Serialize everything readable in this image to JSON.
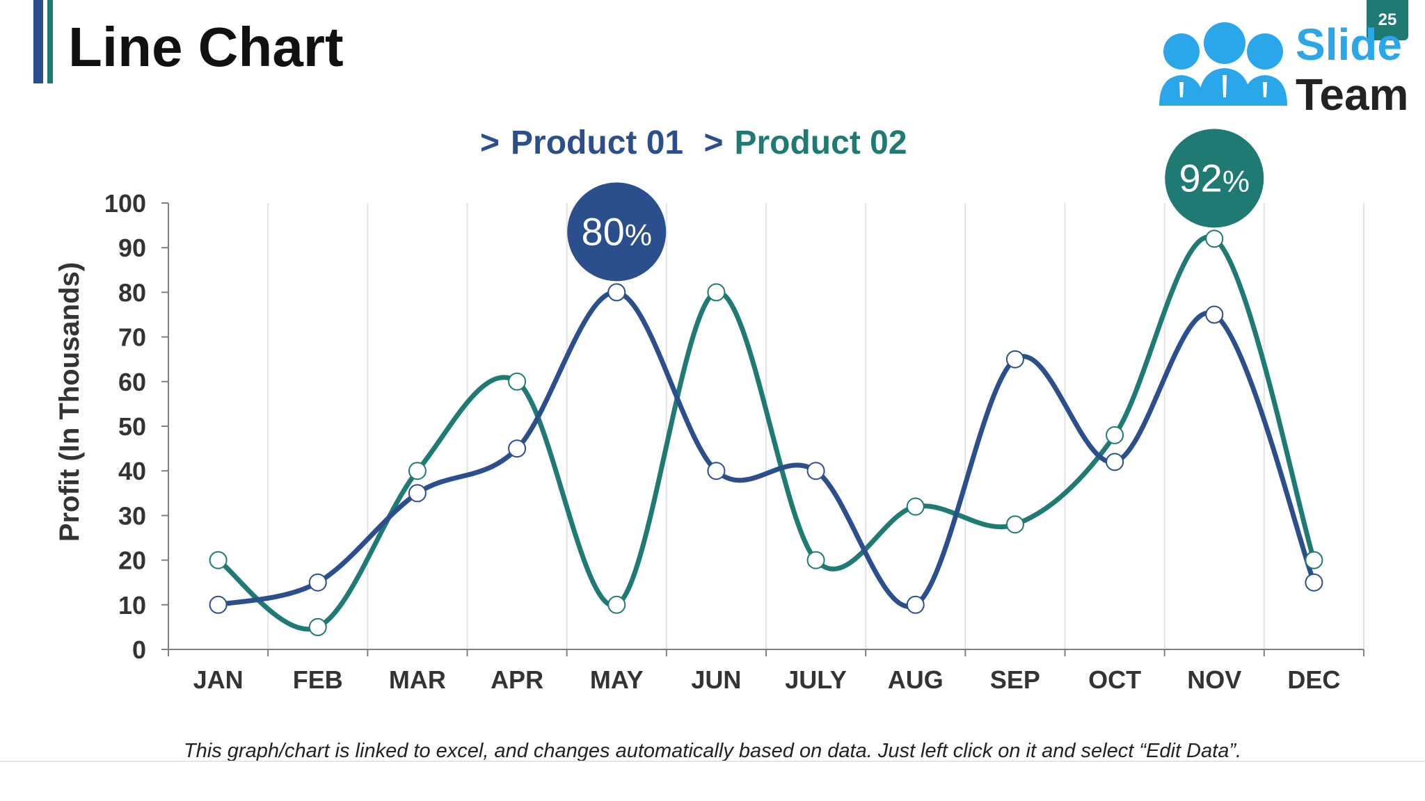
{
  "slide": {
    "title": "Line Chart",
    "page_number": "25",
    "footnote": "This graph/chart is linked to excel, and changes automatically based on data. Just left click on it and select “Edit Data”."
  },
  "logo": {
    "line1": "Slide",
    "line2": "Team",
    "people_color": "#2aa6ea"
  },
  "legend": {
    "marker": ">"
  },
  "colors": {
    "product1": "#2b4e8d",
    "product2": "#1f7a73",
    "grid": "#e3e3e3",
    "axis": "#7f7f7f",
    "title_bar_dark": "#2b4e8d",
    "title_bar_teal": "#1f7a73"
  },
  "chart_data": {
    "type": "line",
    "smooth": true,
    "categories": [
      "JAN",
      "FEB",
      "MAR",
      "APR",
      "MAY",
      "JUN",
      "JULY",
      "AUG",
      "SEP",
      "OCT",
      "NOV",
      "DEC"
    ],
    "series": [
      {
        "name": "Product 01",
        "values": [
          10,
          15,
          35,
          45,
          80,
          40,
          40,
          10,
          65,
          42,
          75,
          15
        ]
      },
      {
        "name": "Product 02",
        "values": [
          20,
          5,
          40,
          60,
          10,
          80,
          20,
          32,
          28,
          48,
          92,
          20
        ]
      }
    ],
    "ylabel": "Profit (In Thousands)",
    "ylim": [
      0,
      100
    ],
    "yticks": [
      0,
      10,
      20,
      30,
      40,
      50,
      60,
      70,
      80,
      90,
      100
    ],
    "grid": "vertical",
    "legend_position": "top",
    "callouts": [
      {
        "label": "80",
        "unit": "%",
        "series": "Product 01",
        "category": "MAY"
      },
      {
        "label": "92",
        "unit": "%",
        "series": "Product 02",
        "category": "NOV"
      }
    ]
  }
}
